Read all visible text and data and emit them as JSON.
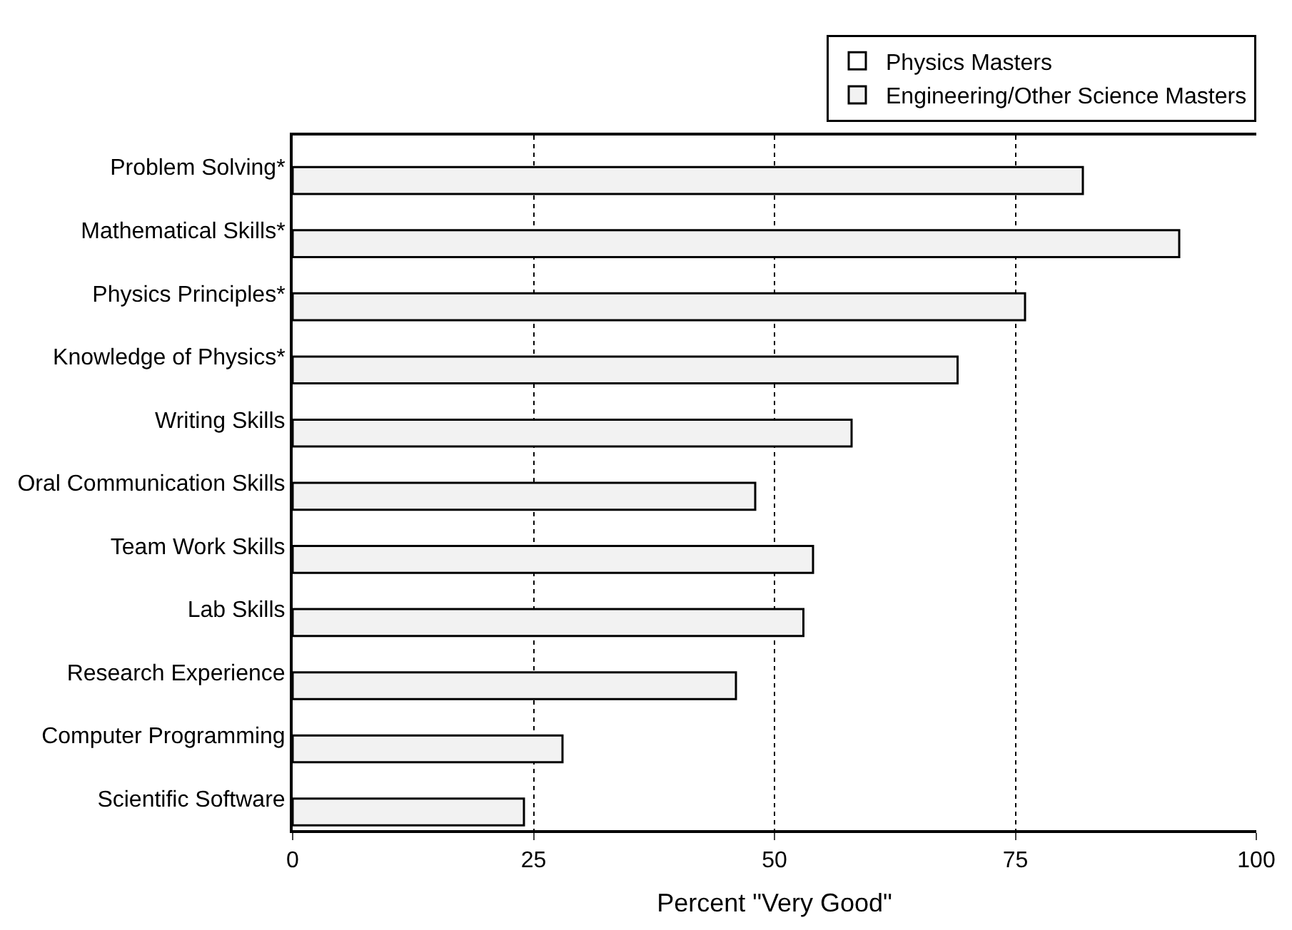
{
  "chart_data": {
    "type": "bar",
    "orientation": "horizontal",
    "xlabel": "Percent \"Very Good\"",
    "categories": [
      "Problem Solving*",
      "Mathematical Skills*",
      "Physics Principles*",
      "Knowledge of Physics*",
      "Writing Skills",
      "Oral Communication Skills",
      "Team Work Skills",
      "Lab Skills",
      "Research Experience",
      "Computer Programming",
      "Scientific Software"
    ],
    "series": [
      {
        "name": "Physics Masters",
        "color": "#ffffff",
        "values": [
          null,
          null,
          null,
          null,
          null,
          null,
          null,
          null,
          null,
          null,
          null
        ]
      },
      {
        "name": "Engineering/Other Science Masters",
        "color": "#f2f2f2",
        "values": [
          82,
          92,
          76,
          69,
          58,
          48,
          54,
          53,
          46,
          28,
          24
        ]
      }
    ],
    "xlim": [
      0,
      100
    ],
    "xticks": [
      0,
      25,
      50,
      75,
      100
    ],
    "grid": "x",
    "legend": "top right"
  }
}
